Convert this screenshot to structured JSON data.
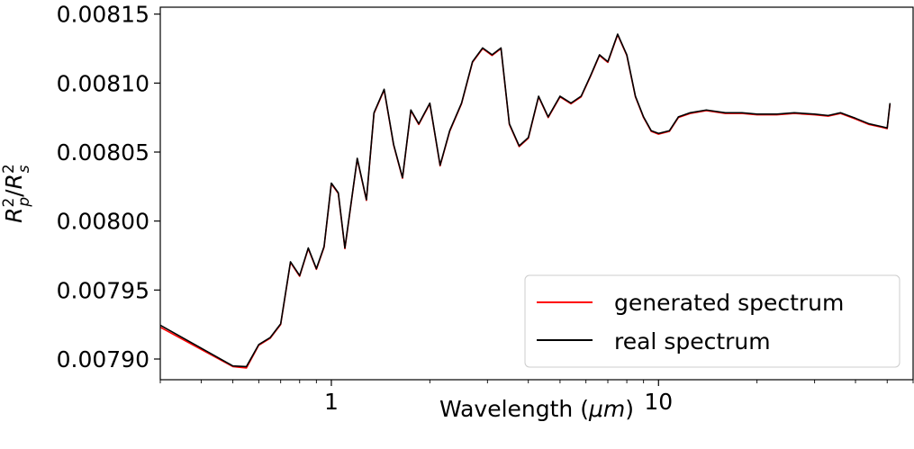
{
  "chart_data": {
    "type": "line",
    "title": "",
    "xlabel": "Wavelength (μm)",
    "xlabel_main": "Wavelength (",
    "xlabel_unit": "μm",
    "xlabel_close": ")",
    "ylabel": "R_p^2/R_s^2",
    "ylabel_r": "R",
    "ylabel_p": "p",
    "ylabel_s": "s",
    "ylabel_sq": "2",
    "ylabel_slash": "/",
    "xscale": "log",
    "xlim": [
      0.3,
      60
    ],
    "ylim": [
      0.007885,
      0.008155
    ],
    "xticks": [
      {
        "value": 1,
        "label": "1"
      },
      {
        "value": 10,
        "label": "10"
      }
    ],
    "yticks": [
      {
        "value": 0.0079,
        "label": "0.00790"
      },
      {
        "value": 0.00795,
        "label": "0.00795"
      },
      {
        "value": 0.008,
        "label": "0.00800"
      },
      {
        "value": 0.00805,
        "label": "0.00805"
      },
      {
        "value": 0.0081,
        "label": "0.00810"
      },
      {
        "value": 0.00815,
        "label": "0.00815"
      }
    ],
    "grid": false,
    "legend_position": "bottom-right",
    "series": [
      {
        "name": "generated spectrum",
        "color": "#ff0000",
        "x": [
          0.3,
          0.5,
          0.55,
          0.6,
          0.65,
          0.7,
          0.75,
          0.8,
          0.85,
          0.9,
          0.95,
          1.0,
          1.05,
          1.1,
          1.2,
          1.28,
          1.35,
          1.45,
          1.55,
          1.65,
          1.75,
          1.85,
          2.0,
          2.15,
          2.3,
          2.5,
          2.7,
          2.9,
          3.1,
          3.3,
          3.5,
          3.75,
          4.0,
          4.3,
          4.6,
          5.0,
          5.4,
          5.8,
          6.2,
          6.6,
          7.0,
          7.5,
          8.0,
          8.5,
          9.0,
          9.5,
          10.0,
          10.8,
          11.5,
          12.5,
          14.0,
          16.0,
          18.0,
          20.0,
          23.0,
          26.0,
          30.0,
          33.0,
          36.0,
          40.0,
          44.0,
          48.0,
          50.0,
          51.0
        ],
        "y": [
          0.007923,
          0.0078945,
          0.0078935,
          0.00791,
          0.007915,
          0.007925,
          0.00797,
          0.00796,
          0.00798,
          0.007965,
          0.007981,
          0.008027,
          0.00802,
          0.00798,
          0.008045,
          0.008015,
          0.008078,
          0.008095,
          0.008055,
          0.008031,
          0.00808,
          0.00807,
          0.008085,
          0.00804,
          0.008065,
          0.008085,
          0.008115,
          0.008125,
          0.00812,
          0.008125,
          0.00807,
          0.008054,
          0.00806,
          0.00809,
          0.008075,
          0.00809,
          0.008085,
          0.00809,
          0.008105,
          0.00812,
          0.008115,
          0.008135,
          0.00812,
          0.00809,
          0.008075,
          0.008065,
          0.008063,
          0.008065,
          0.008075,
          0.008078,
          0.00808,
          0.008078,
          0.008078,
          0.008077,
          0.008077,
          0.008078,
          0.008077,
          0.008076,
          0.008078,
          0.008074,
          0.00807,
          0.008068,
          0.008067,
          0.008085
        ]
      },
      {
        "name": "real spectrum",
        "color": "#000000",
        "x": [
          0.3,
          0.5,
          0.55,
          0.6,
          0.65,
          0.7,
          0.75,
          0.8,
          0.85,
          0.9,
          0.95,
          1.0,
          1.05,
          1.1,
          1.2,
          1.28,
          1.35,
          1.45,
          1.55,
          1.65,
          1.75,
          1.85,
          2.0,
          2.15,
          2.3,
          2.5,
          2.7,
          2.9,
          3.1,
          3.3,
          3.5,
          3.75,
          4.0,
          4.3,
          4.6,
          5.0,
          5.4,
          5.8,
          6.2,
          6.6,
          7.0,
          7.5,
          8.0,
          8.5,
          9.0,
          9.5,
          10.0,
          10.8,
          11.5,
          12.5,
          14.0,
          16.0,
          18.0,
          20.0,
          23.0,
          26.0,
          30.0,
          33.0,
          36.0,
          40.0,
          44.0,
          48.0,
          50.0,
          51.0
        ],
        "y": [
          0.0079245,
          0.007895,
          0.0078945,
          0.0079105,
          0.0079155,
          0.0079255,
          0.0079705,
          0.0079605,
          0.0079805,
          0.0079655,
          0.0079815,
          0.0080275,
          0.0080205,
          0.0079805,
          0.0080455,
          0.0080155,
          0.0080785,
          0.0080955,
          0.0080555,
          0.0080315,
          0.0080805,
          0.0080705,
          0.0080855,
          0.0080405,
          0.0080655,
          0.0080855,
          0.0081155,
          0.0081255,
          0.0081205,
          0.0081255,
          0.0080705,
          0.0080545,
          0.0080605,
          0.0080905,
          0.0080755,
          0.0080905,
          0.0080855,
          0.0080905,
          0.0081055,
          0.0081205,
          0.0081155,
          0.0081355,
          0.0081205,
          0.0080905,
          0.0080755,
          0.0080655,
          0.0080635,
          0.0080655,
          0.0080755,
          0.0080785,
          0.0080805,
          0.0080785,
          0.0080785,
          0.0080775,
          0.0080775,
          0.0080785,
          0.0080775,
          0.0080765,
          0.0080785,
          0.0080745,
          0.0080705,
          0.0080685,
          0.0080675,
          0.0080855
        ]
      }
    ]
  }
}
